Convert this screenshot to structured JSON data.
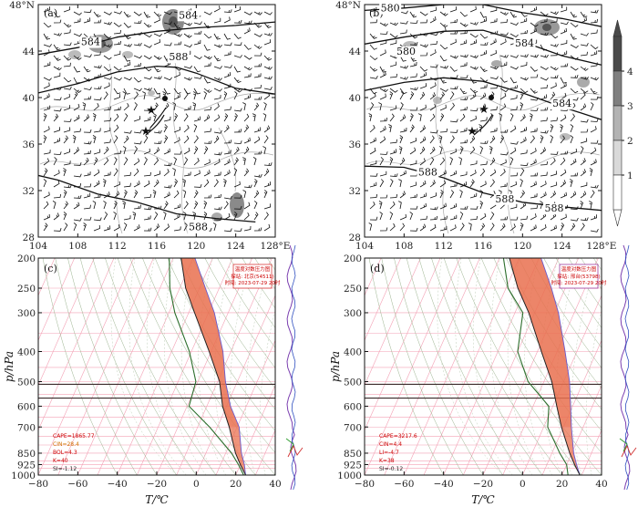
{
  "chart_data": [
    {
      "panel": "(a)",
      "type": "map",
      "lat_ticks": [
        "28",
        "32",
        "36",
        "40",
        "44",
        "48°N"
      ],
      "lon_ticks": [
        "104",
        "108",
        "112",
        "116",
        "120",
        "124",
        "128°E"
      ],
      "lon_range": [
        104,
        128
      ],
      "lat_range": [
        28,
        48
      ],
      "contour_labels": [
        "584",
        "584",
        "588",
        "588"
      ],
      "contours": [
        {
          "label": "584",
          "points": [
            [
              104,
              43.7
            ],
            [
              108,
              44.3
            ],
            [
              112,
              45.2
            ],
            [
              116,
              45.7
            ],
            [
              120,
              46.0
            ],
            [
              124,
              46.2
            ],
            [
              128,
              46.5
            ]
          ]
        },
        {
          "label": "588",
          "points": [
            [
              104,
              40.4
            ],
            [
              108,
              41.2
            ],
            [
              112,
              42.2
            ],
            [
              116,
              42.7
            ],
            [
              118,
              42.6
            ],
            [
              120,
              42.1
            ],
            [
              124,
              40.8
            ],
            [
              128,
              40.3
            ]
          ]
        },
        {
          "label": "588",
          "points": [
            [
              104,
              33.3
            ],
            [
              106,
              32.9
            ],
            [
              110,
              31.7
            ],
            [
              114,
              31.0
            ],
            [
              118,
              30.0
            ],
            [
              122,
              29.6
            ],
            [
              126,
              29.3
            ]
          ]
        }
      ],
      "shading_levels": [
        1,
        2,
        3,
        4
      ],
      "markers": {
        "city_dot": [
          116.3,
          39.9
        ],
        "stars": [
          [
            115.6,
            39.2
          ],
          [
            114.9,
            37.6
          ]
        ]
      }
    },
    {
      "panel": "(b)",
      "type": "map",
      "lat_ticks": [
        "28",
        "32",
        "36",
        "40",
        "44",
        "48°N"
      ],
      "lon_ticks": [
        "104",
        "108",
        "112",
        "116",
        "120",
        "124",
        "128°E"
      ],
      "lon_range": [
        104,
        128
      ],
      "lat_range": [
        28,
        48
      ],
      "contour_labels": [
        "580",
        "580",
        "584",
        "584",
        "588",
        "588",
        "588"
      ],
      "contours": [
        {
          "label": "580",
          "points": [
            [
              104,
              47.5
            ],
            [
              108,
              47.7
            ],
            [
              112,
              48.0
            ],
            [
              116,
              48.0
            ],
            [
              120,
              47.3
            ],
            [
              124,
              46.8
            ],
            [
              128,
              46.1
            ]
          ]
        },
        {
          "label": "584",
          "points": [
            [
              104,
              44.6
            ],
            [
              108,
              45.2
            ],
            [
              112,
              45.7
            ],
            [
              116,
              45.8
            ],
            [
              120,
              44.8
            ],
            [
              124,
              43.6
            ],
            [
              128,
              42.8
            ]
          ]
        },
        {
          "label": "588",
          "points": [
            [
              104,
              40.6
            ],
            [
              108,
              41.3
            ],
            [
              112,
              41.7
            ],
            [
              116,
              41.4
            ],
            [
              120,
              40.4
            ],
            [
              124,
              39.2
            ],
            [
              128,
              38.1
            ]
          ]
        },
        {
          "label": "588",
          "points": [
            [
              104,
              34.1
            ],
            [
              108,
              34.0
            ],
            [
              112,
              33.1
            ],
            [
              116,
              31.8
            ],
            [
              120,
              31.0
            ],
            [
              124,
              30.6
            ],
            [
              128,
              30.3
            ]
          ]
        }
      ],
      "colorbar": {
        "ticks": [
          "1",
          "2",
          "3",
          "4"
        ]
      },
      "markers": {
        "city_dot": [
          116.3,
          39.9
        ],
        "stars": [
          [
            116.1,
            39.2
          ],
          [
            115.4,
            37.6
          ]
        ]
      }
    },
    {
      "panel": "(c)",
      "type": "skew-T",
      "xlabel": "T/℃",
      "ylabel": "p/hPa",
      "xlim": [
        -80,
        40
      ],
      "x_ticks": [
        "−80",
        "−60",
        "−40",
        "−20",
        "0",
        "20",
        "40"
      ],
      "p_ticks": [
        "200",
        "250",
        "300",
        "400",
        "500",
        "600",
        "700",
        "850",
        "925",
        "1000"
      ],
      "p_range": [
        200,
        1000
      ],
      "temperature_profile": [
        [
          1000,
          25
        ],
        [
          925,
          20
        ],
        [
          850,
          15
        ],
        [
          700,
          6
        ],
        [
          600,
          -2
        ],
        [
          500,
          -9
        ],
        [
          400,
          -21
        ],
        [
          300,
          -37
        ],
        [
          250,
          -47
        ],
        [
          200,
          -56
        ]
      ],
      "dewpoint_profile": [
        [
          1000,
          24
        ],
        [
          925,
          19
        ],
        [
          850,
          13
        ],
        [
          700,
          -4
        ],
        [
          600,
          -19
        ],
        [
          500,
          -21
        ],
        [
          400,
          -31
        ],
        [
          300,
          -47
        ],
        [
          250,
          -55
        ],
        [
          200,
          -62
        ]
      ],
      "parcel_profile": [
        [
          1000,
          25
        ],
        [
          925,
          22
        ],
        [
          850,
          18
        ],
        [
          700,
          11
        ],
        [
          600,
          2
        ],
        [
          500,
          -6
        ],
        [
          400,
          -14
        ],
        [
          300,
          -27
        ],
        [
          250,
          -37
        ],
        [
          200,
          -49
        ]
      ],
      "title_box": [
        "温度对数压力图",
        "探站: 北京(54511)",
        "时间: 2023-07-29 20时"
      ],
      "indices": [
        "CAPE=1865.77",
        "CIN=28.4",
        "BOL=4.3",
        "K=40",
        "SI=-1.12"
      ]
    },
    {
      "panel": "(d)",
      "type": "skew-T",
      "xlabel": "T/℃",
      "ylabel": "p/hPa",
      "xlim": [
        -80,
        40
      ],
      "x_ticks": [
        "−80",
        "−60",
        "−40",
        "−20",
        "0",
        "20",
        "40"
      ],
      "p_ticks": [
        "200",
        "250",
        "300",
        "400",
        "500",
        "600",
        "700",
        "850",
        "925",
        "1000"
      ],
      "p_range": [
        200,
        1000
      ],
      "temperature_profile": [
        [
          1000,
          29
        ],
        [
          925,
          24
        ],
        [
          850,
          19
        ],
        [
          700,
          9
        ],
        [
          600,
          2
        ],
        [
          500,
          -6
        ],
        [
          400,
          -18
        ],
        [
          300,
          -33
        ],
        [
          250,
          -44
        ],
        [
          200,
          -55
        ]
      ],
      "dewpoint_profile": [
        [
          1000,
          23
        ],
        [
          925,
          20
        ],
        [
          850,
          14
        ],
        [
          700,
          2
        ],
        [
          600,
          -2
        ],
        [
          500,
          -18
        ],
        [
          400,
          -30
        ],
        [
          300,
          -36
        ],
        [
          250,
          -49
        ],
        [
          200,
          -58
        ]
      ],
      "parcel_profile": [
        [
          1000,
          29
        ],
        [
          925,
          25
        ],
        [
          850,
          21
        ],
        [
          700,
          14
        ],
        [
          600,
          9
        ],
        [
          500,
          3
        ],
        [
          400,
          -6
        ],
        [
          300,
          -18
        ],
        [
          250,
          -27
        ],
        [
          200,
          -39
        ]
      ],
      "title_box": [
        "温度对数压力图",
        "探站: 邢台(53798)",
        "时间: 2023-07-29 20时"
      ],
      "indices": [
        "CAPE=3217.6",
        "CIN=4.4",
        "LI=-4.7",
        "K=38",
        "SI=-0.12"
      ]
    }
  ]
}
